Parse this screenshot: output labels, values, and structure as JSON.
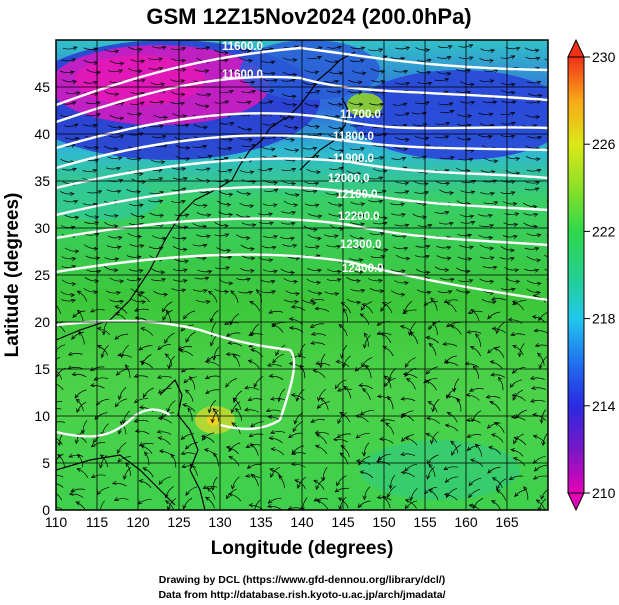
{
  "title": "GSM 12Z15Nov2024 (200.0hPa)",
  "x_axis_label": "Longitude (degrees)",
  "y_axis_label": "Latitude  (degrees)",
  "x_ticks": [
    "110",
    "115",
    "120",
    "125",
    "130",
    "135",
    "140",
    "145",
    "150",
    "155",
    "160",
    "165"
  ],
  "y_ticks": [
    "0",
    "5",
    "10",
    "15",
    "20",
    "25",
    "30",
    "35",
    "40",
    "45"
  ],
  "colorbar_ticks": [
    "210",
    "214",
    "218",
    "222",
    "226",
    "230"
  ],
  "credit_line_1": "Drawing by DCL (https://www.gfd-dennou.org/library/dcl/)",
  "credit_line_2": "Data from http://database.rish.kyoto-u.ac.jp/arch/jmadata/",
  "contour_labels": [
    "11600.0",
    "11600.0",
    "11700.0",
    "11800.0",
    "11900.0",
    "12000.0",
    "12100.0",
    "12200.0",
    "12300.0",
    "12400.0"
  ],
  "map_data": {
    "type": "meteorological-field",
    "lon_range": [
      110,
      170
    ],
    "lat_range": [
      0,
      50
    ],
    "shading": "temperature (K)",
    "colorbar_range": [
      210,
      230
    ],
    "contours": "geopotential height (m)",
    "vectors": "wind streamlines"
  },
  "colors": {
    "warm_low_lat": "#3ec83c",
    "cold_high": "#1f3fd0",
    "coldest": "#d818b8",
    "contour": "#ffffff"
  }
}
